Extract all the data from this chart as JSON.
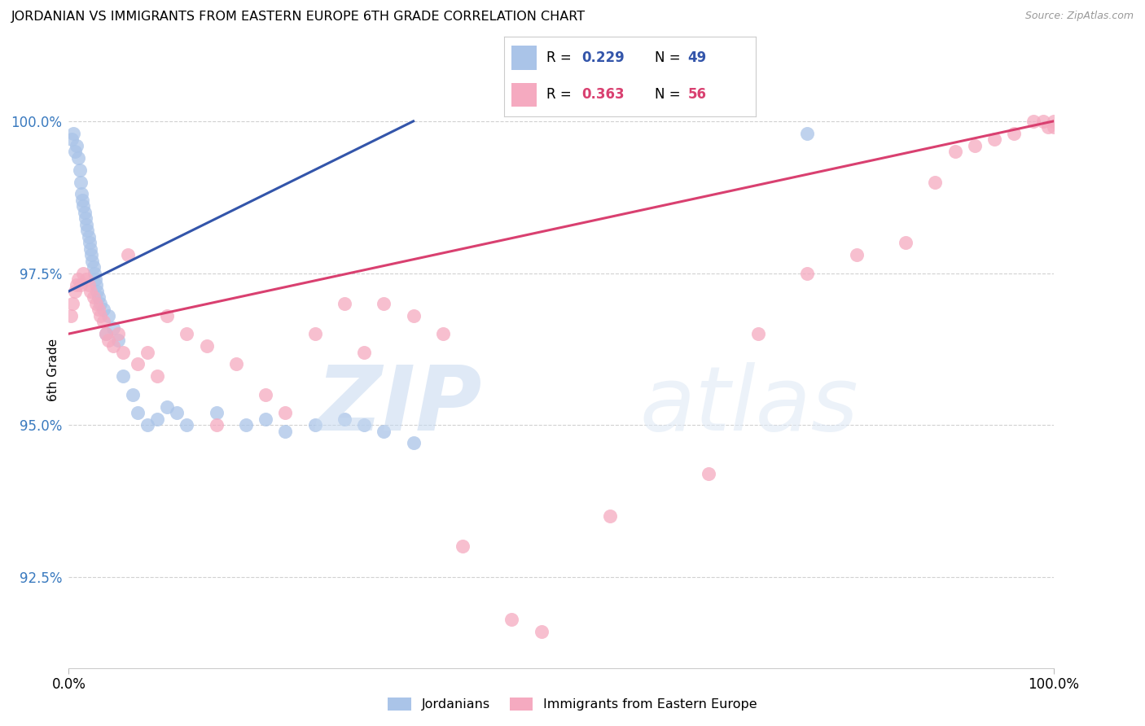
{
  "title": "JORDANIAN VS IMMIGRANTS FROM EASTERN EUROPE 6TH GRADE CORRELATION CHART",
  "source": "Source: ZipAtlas.com",
  "ylabel": "6th Grade",
  "ytick_values": [
    92.5,
    95.0,
    97.5,
    100.0
  ],
  "xlim": [
    0.0,
    100.0
  ],
  "ylim": [
    91.0,
    100.8
  ],
  "blue_color": "#aac4e8",
  "blue_line_color": "#3355aa",
  "pink_color": "#f5aac0",
  "pink_line_color": "#d94070",
  "blue_scatter_x": [
    0.3,
    0.5,
    0.6,
    0.8,
    1.0,
    1.1,
    1.2,
    1.3,
    1.4,
    1.5,
    1.6,
    1.7,
    1.8,
    1.9,
    2.0,
    2.1,
    2.2,
    2.3,
    2.4,
    2.5,
    2.6,
    2.7,
    2.8,
    2.9,
    3.0,
    3.2,
    3.5,
    3.8,
    4.0,
    4.5,
    5.0,
    5.5,
    6.5,
    7.0,
    8.0,
    9.0,
    10.0,
    11.0,
    12.0,
    15.0,
    18.0,
    20.0,
    22.0,
    25.0,
    28.0,
    30.0,
    32.0,
    35.0,
    75.0
  ],
  "blue_scatter_y": [
    99.7,
    99.8,
    99.5,
    99.6,
    99.4,
    99.2,
    99.0,
    98.8,
    98.7,
    98.6,
    98.5,
    98.4,
    98.3,
    98.2,
    98.1,
    98.0,
    97.9,
    97.8,
    97.7,
    97.6,
    97.5,
    97.4,
    97.3,
    97.2,
    97.1,
    97.0,
    96.9,
    96.5,
    96.8,
    96.6,
    96.4,
    95.8,
    95.5,
    95.2,
    95.0,
    95.1,
    95.3,
    95.2,
    95.0,
    95.2,
    95.0,
    95.1,
    94.9,
    95.0,
    95.1,
    95.0,
    94.9,
    94.7,
    99.8
  ],
  "pink_scatter_x": [
    0.2,
    0.4,
    0.6,
    0.8,
    1.0,
    1.2,
    1.5,
    1.8,
    2.0,
    2.2,
    2.5,
    2.8,
    3.0,
    3.2,
    3.5,
    3.8,
    4.0,
    4.5,
    5.0,
    5.5,
    6.0,
    7.0,
    8.0,
    9.0,
    10.0,
    12.0,
    14.0,
    15.0,
    17.0,
    20.0,
    22.0,
    25.0,
    28.0,
    30.0,
    32.0,
    35.0,
    38.0,
    40.0,
    45.0,
    48.0,
    55.0,
    65.0,
    70.0,
    75.0,
    80.0,
    85.0,
    88.0,
    90.0,
    92.0,
    94.0,
    96.0,
    98.0,
    99.0,
    99.5,
    100.0,
    100.0
  ],
  "pink_scatter_y": [
    96.8,
    97.0,
    97.2,
    97.3,
    97.4,
    97.3,
    97.5,
    97.4,
    97.3,
    97.2,
    97.1,
    97.0,
    96.9,
    96.8,
    96.7,
    96.5,
    96.4,
    96.3,
    96.5,
    96.2,
    97.8,
    96.0,
    96.2,
    95.8,
    96.8,
    96.5,
    96.3,
    95.0,
    96.0,
    95.5,
    95.2,
    96.5,
    97.0,
    96.2,
    97.0,
    96.8,
    96.5,
    93.0,
    91.8,
    91.6,
    93.5,
    94.2,
    96.5,
    97.5,
    97.8,
    98.0,
    99.0,
    99.5,
    99.6,
    99.7,
    99.8,
    100.0,
    100.0,
    99.9,
    99.9,
    100.0
  ],
  "blue_line_x": [
    0,
    35
  ],
  "blue_line_y_start": 97.2,
  "blue_line_y_end": 100.0,
  "pink_line_x": [
    0,
    100
  ],
  "pink_line_y_start": 96.5,
  "pink_line_y_end": 100.0
}
